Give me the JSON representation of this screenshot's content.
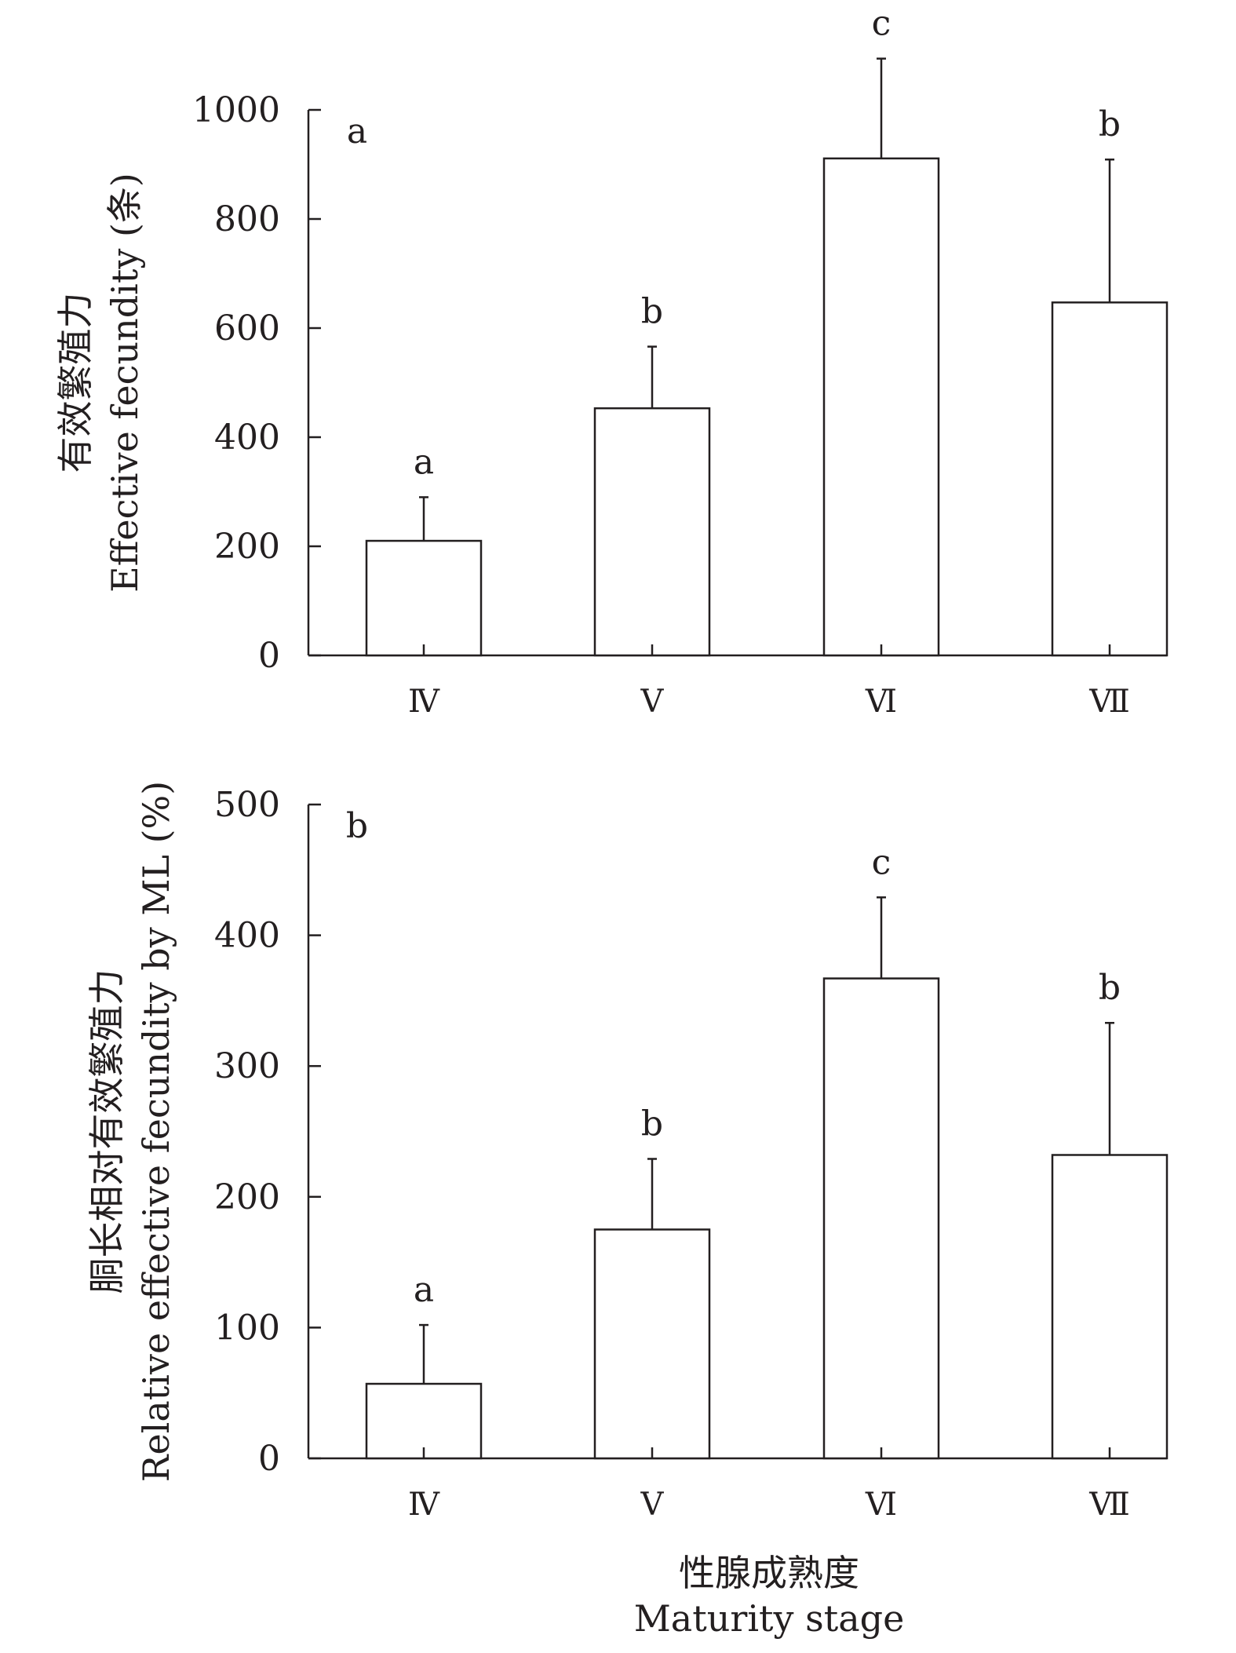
{
  "chart_data": [
    {
      "type": "bar",
      "categories": [
        "Ⅳ",
        "Ⅴ",
        "Ⅵ",
        "Ⅶ"
      ],
      "values": [
        210,
        453,
        911,
        647
      ],
      "errors": [
        80,
        113,
        183,
        262
      ],
      "significance": [
        "a",
        "b",
        "c",
        "b"
      ],
      "panel_label": "a",
      "ylabel_cn": "有效繁殖力",
      "ylabel_en": "Effective fecundity (条)",
      "ylim": [
        0,
        1000
      ],
      "yticks": [
        0,
        200,
        400,
        600,
        800,
        1000
      ],
      "grid": false,
      "legend": "none",
      "bar_fill": "#ffffff",
      "line_color": "#231f20"
    },
    {
      "type": "bar",
      "categories": [
        "Ⅳ",
        "Ⅴ",
        "Ⅵ",
        "Ⅶ"
      ],
      "values": [
        57,
        175,
        367,
        232
      ],
      "errors": [
        45,
        54,
        62,
        101
      ],
      "significance": [
        "a",
        "b",
        "c",
        "b"
      ],
      "panel_label": "b",
      "ylabel_cn": "胴长相对有效繁殖力",
      "ylabel_en": "Relative effective fecundity by ML (%)",
      "ylim": [
        0,
        500
      ],
      "yticks": [
        0,
        100,
        200,
        300,
        400,
        500
      ],
      "grid": false,
      "legend": "none",
      "bar_fill": "#ffffff",
      "line_color": "#231f20"
    }
  ],
  "xlabel_cn": "性腺成熟度",
  "xlabel_en": "Maturity stage"
}
